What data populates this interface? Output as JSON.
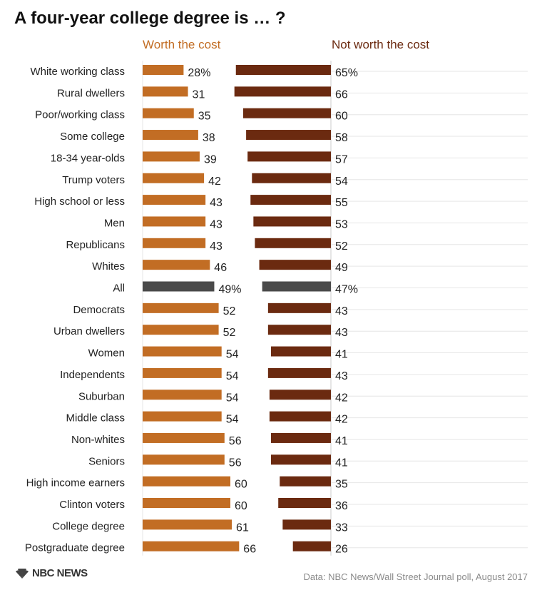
{
  "title": "A four-year college degree is … ?",
  "footer": {
    "logo": "NBC NEWS",
    "source": "Data: NBC News/Wall Street Journal poll, August 2017"
  },
  "colors": {
    "worth": "#c26d24",
    "not_worth": "#6b2a10",
    "highlight": "#4a4a4a",
    "divider": "#cccccc",
    "row_rule": "#e6e6e6"
  },
  "chart_data": {
    "type": "bar",
    "title": "A four-year college degree is … ?",
    "legend_placement": "top",
    "series": [
      {
        "name": "Worth the cost",
        "values": [
          28,
          31,
          35,
          38,
          39,
          42,
          43,
          43,
          43,
          46,
          49,
          52,
          52,
          54,
          54,
          54,
          54,
          56,
          56,
          60,
          60,
          61,
          66
        ]
      },
      {
        "name": "Not worth the cost",
        "values": [
          65,
          66,
          60,
          58,
          57,
          54,
          55,
          53,
          52,
          49,
          47,
          43,
          43,
          41,
          43,
          42,
          42,
          41,
          41,
          35,
          36,
          33,
          26
        ]
      }
    ],
    "categories": [
      "White working class",
      "Rural dwellers",
      "Poor/working class",
      "Some college",
      "18-34 year-olds",
      "Trump voters",
      "High school or less",
      "Men",
      "Republicans",
      "Whites",
      "All",
      "Democrats",
      "Urban dwellers",
      "Women",
      "Independents",
      "Suburban",
      "Middle class",
      "Non-whites",
      "Seniors",
      "High income earners",
      "Clinton voters",
      "College degree",
      "Postgraduate degree"
    ],
    "worth_labels": [
      "28%",
      "31",
      "35",
      "38",
      "39",
      "42",
      "43",
      "43",
      "43",
      "46",
      "49%",
      "52",
      "52",
      "54",
      "54",
      "54",
      "54",
      "56",
      "56",
      "60",
      "60",
      "61",
      "66"
    ],
    "not_worth_labels": [
      "65%",
      "66",
      "60",
      "58",
      "57",
      "54",
      "55",
      "53",
      "52",
      "49",
      "47%",
      "43",
      "43",
      "41",
      "43",
      "42",
      "42",
      "41",
      "41",
      "35",
      "36",
      "33",
      "26"
    ],
    "highlight_category": "All",
    "xlim": [
      0,
      100
    ]
  }
}
